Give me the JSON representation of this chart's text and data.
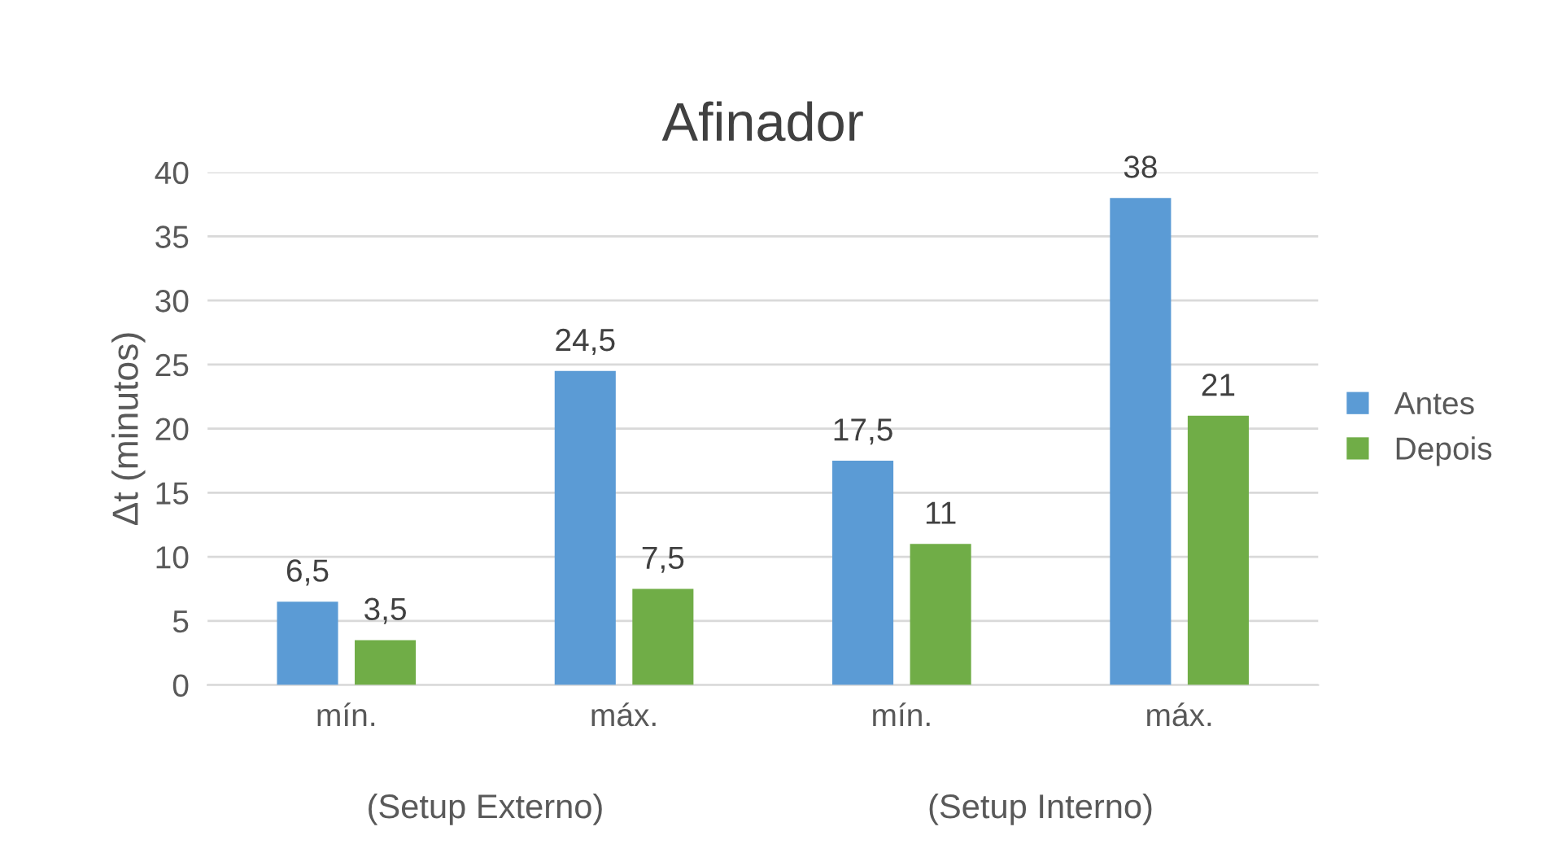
{
  "chart_data": {
    "type": "bar",
    "title": "Afinador",
    "ylabel": "Δt (minutos)",
    "categories": [
      "mín.",
      "máx.",
      "mín.",
      "máx."
    ],
    "series": [
      {
        "name": "Antes",
        "color": "#5b9bd5",
        "values": [
          6.5,
          24.5,
          17.5,
          38
        ],
        "value_labels": [
          "6,5",
          "24,5",
          "17,5",
          "38"
        ]
      },
      {
        "name": "Depois",
        "color": "#70ad47",
        "values": [
          3.5,
          7.5,
          11,
          21
        ],
        "value_labels": [
          "3,5",
          "7,5",
          "11",
          "21"
        ]
      }
    ],
    "annotations": [
      "(Setup Externo)",
      "(Setup Interno)"
    ],
    "ylim": [
      0,
      40
    ],
    "yticks": [
      0,
      5,
      10,
      15,
      20,
      25,
      30,
      35,
      40
    ],
    "grid": "y",
    "legend": "right"
  }
}
